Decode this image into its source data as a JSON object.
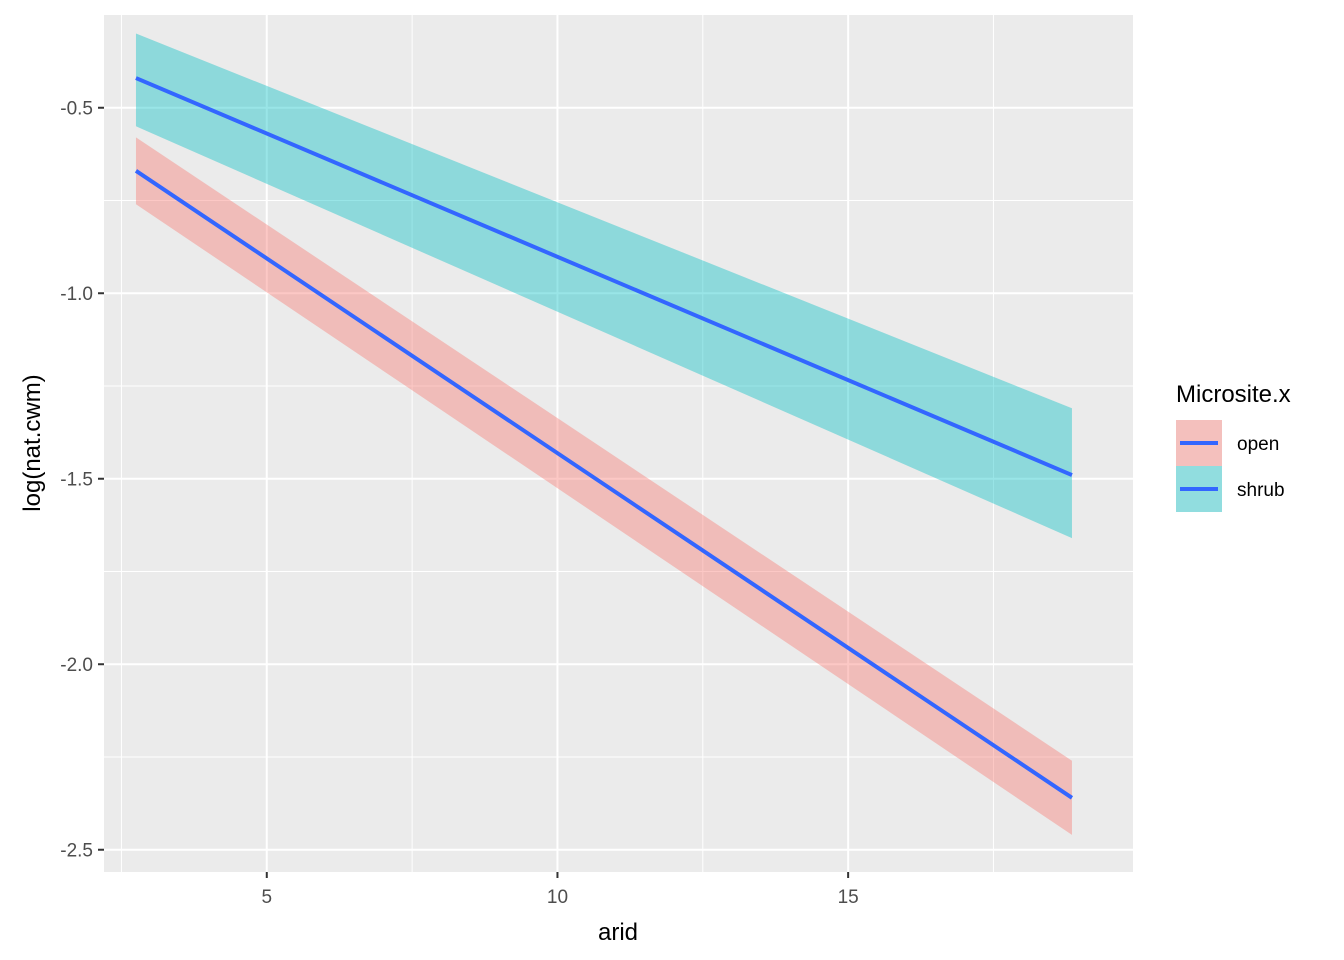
{
  "chart_data": {
    "type": "line",
    "xlabel": "arid",
    "ylabel": "log(nat.cwm)",
    "xlim": [
      2.2,
      19.9
    ],
    "ylim": [
      -2.56,
      -0.25
    ],
    "x_ticks": [
      5,
      10,
      15
    ],
    "x_tick_labels": [
      "5",
      "10",
      "15"
    ],
    "y_ticks": [
      -0.5,
      -1.0,
      -1.5,
      -2.0,
      -2.5
    ],
    "y_tick_labels": [
      "-0.5",
      "-1.0",
      "-1.5",
      "-2.0",
      "-2.5"
    ],
    "grid": true,
    "legend": {
      "title": "Microsite.x",
      "position": "right",
      "entries": [
        "open",
        "shrub"
      ]
    },
    "line_color": "#3366FF",
    "series": [
      {
        "name": "open",
        "fill_color": "#F8766D",
        "x": [
          2.75,
          18.85
        ],
        "y": [
          -0.67,
          -2.36
        ],
        "ymin": [
          -0.76,
          -2.46
        ],
        "ymax": [
          -0.58,
          -2.26
        ]
      },
      {
        "name": "shrub",
        "fill_color": "#00BFC4",
        "x": [
          2.75,
          18.85
        ],
        "y": [
          -0.42,
          -1.49
        ],
        "ymin": [
          -0.55,
          -1.66
        ],
        "ymax": [
          -0.3,
          -1.31
        ]
      }
    ]
  }
}
